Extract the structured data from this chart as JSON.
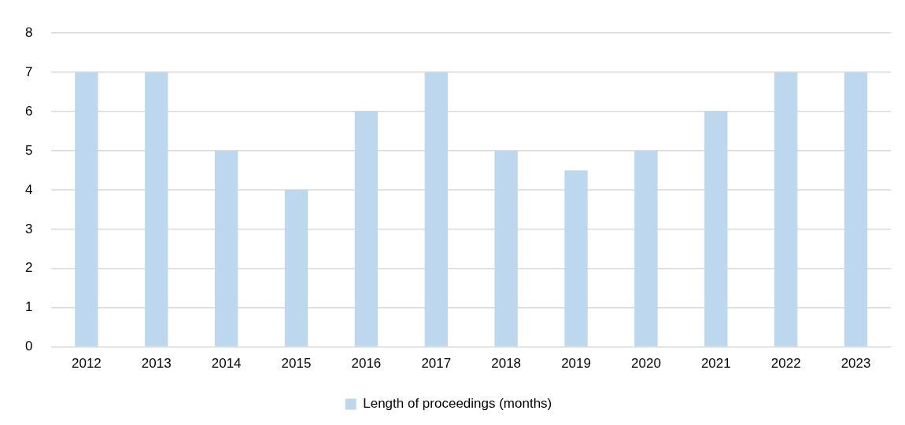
{
  "chart_data": {
    "type": "bar",
    "categories": [
      "2012",
      "2013",
      "2014",
      "2015",
      "2016",
      "2017",
      "2018",
      "2019",
      "2020",
      "2021",
      "2022",
      "2023"
    ],
    "series": [
      {
        "name": "Length of proceedings (months)",
        "color": "#bdd7ee",
        "values": [
          7,
          7,
          5,
          4,
          6,
          7,
          5,
          4.5,
          5,
          6,
          7,
          7
        ]
      }
    ],
    "ylim": [
      0,
      8
    ],
    "yticks": [
      0,
      1,
      2,
      3,
      4,
      5,
      6,
      7,
      8
    ],
    "grid": "y",
    "legend": "bottom"
  }
}
